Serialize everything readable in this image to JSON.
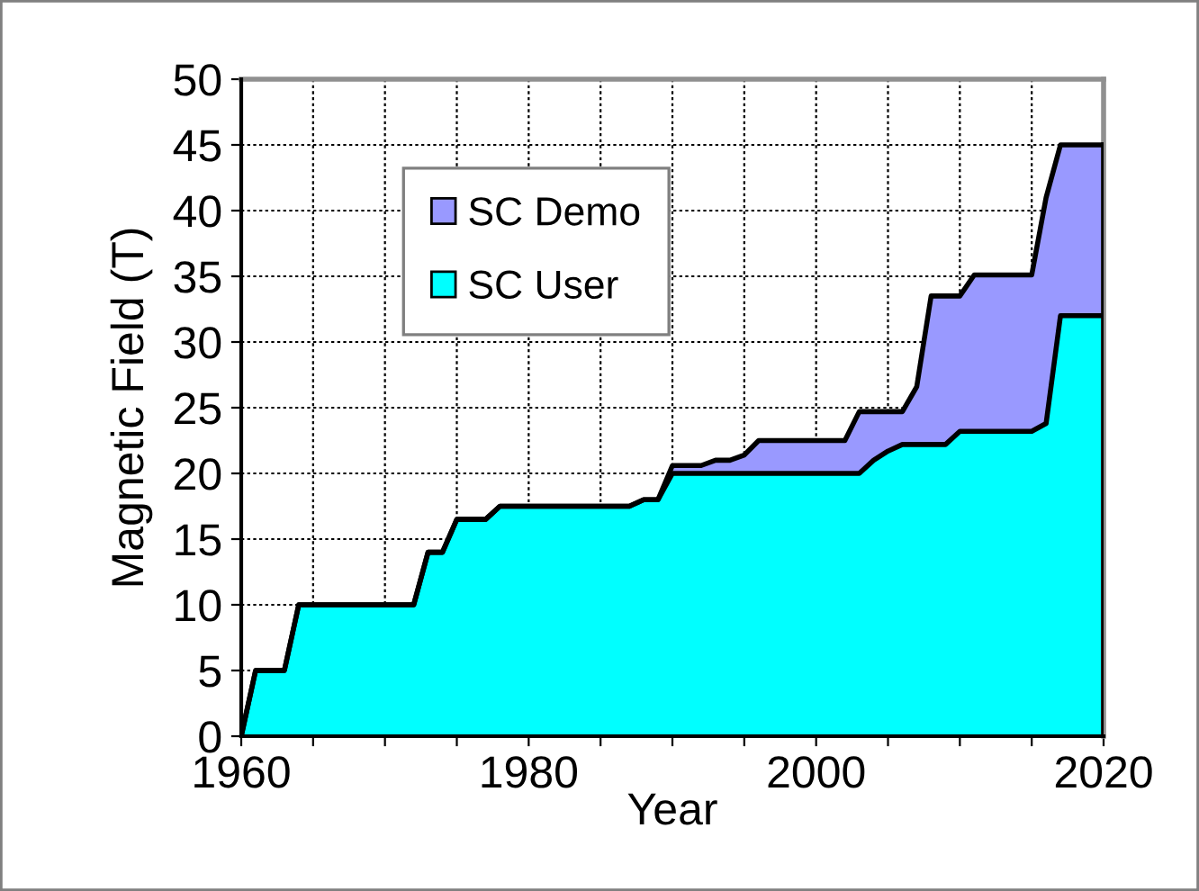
{
  "chart_data": {
    "type": "area",
    "stacked": true,
    "xlabel": "Year",
    "ylabel": "Magnetic Field (T)",
    "x": [
      1960,
      1961,
      1963,
      1964,
      1972,
      1973,
      1974,
      1975,
      1977,
      1978,
      1987,
      1988,
      1989,
      1990,
      1992,
      1993,
      1994,
      1995,
      1996,
      2002,
      2003,
      2004,
      2005,
      2006,
      2007,
      2008,
      2009,
      2010,
      2011,
      2015,
      2016,
      2017,
      2020
    ],
    "series": [
      {
        "name": "SC User",
        "color": "#00ffff",
        "values": [
          0,
          5,
          5,
          10,
          10,
          14,
          14,
          16.5,
          16.5,
          17.5,
          17.5,
          18,
          18,
          20,
          20,
          20,
          20,
          20,
          20,
          20,
          20,
          21,
          21.7,
          22.2,
          22.2,
          22.2,
          22.2,
          23.2,
          23.2,
          23.2,
          23.8,
          32,
          32
        ]
      },
      {
        "name": "SC Demo",
        "color": "#9999ff",
        "values": [
          0,
          0,
          0,
          0,
          0,
          0,
          0,
          0,
          0,
          0,
          0,
          0,
          0,
          0.6,
          0.6,
          1,
          1,
          1.4,
          2.5,
          2.5,
          4.7,
          3.7,
          3,
          2.5,
          4.4,
          11.3,
          11.3,
          10.3,
          11.9,
          11.9,
          17.2,
          13,
          13
        ]
      }
    ],
    "xlim": [
      1960,
      2020
    ],
    "xticks": [
      1960,
      {
        "value": 1965,
        "label": null
      },
      {
        "value": 1970,
        "label": null
      },
      {
        "value": 1975,
        "label": null
      },
      1980,
      {
        "value": 1985,
        "label": null
      },
      {
        "value": 1990,
        "label": null
      },
      {
        "value": 1995,
        "label": null
      },
      2000,
      {
        "value": 2005,
        "label": null
      },
      {
        "value": 2010,
        "label": null
      },
      {
        "value": 2015,
        "label": null
      },
      2020
    ],
    "ylim": [
      0,
      50
    ],
    "yticks": [
      0,
      5,
      10,
      15,
      20,
      25,
      30,
      35,
      40,
      45,
      50
    ],
    "grid": true,
    "legend": "top left"
  }
}
